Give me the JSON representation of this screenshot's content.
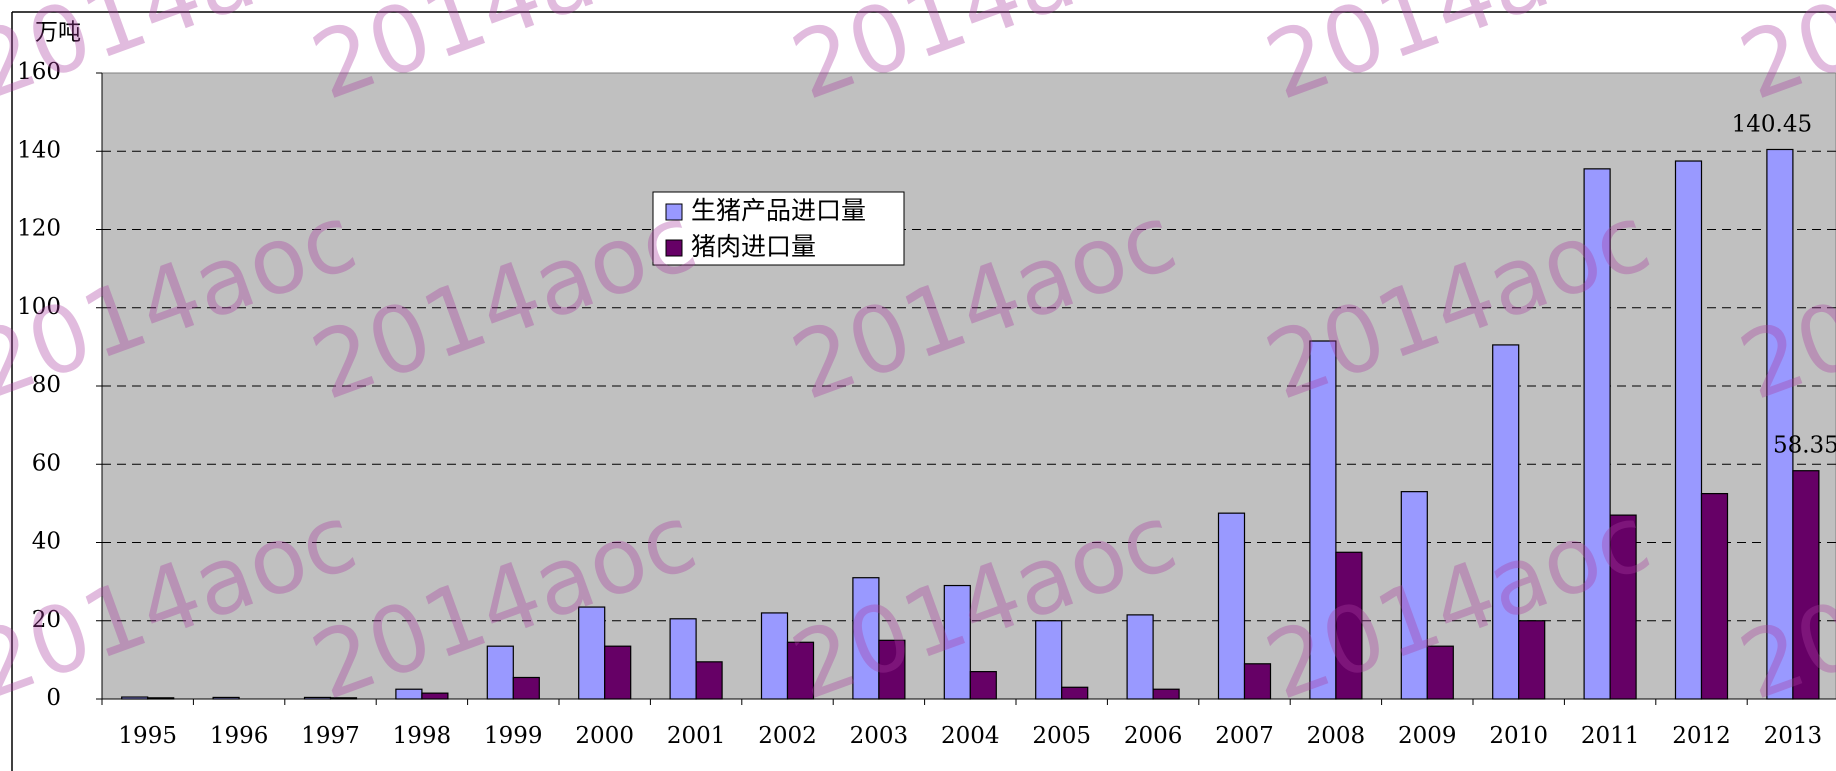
{
  "chart_data": {
    "type": "bar",
    "y_axis_label": "万吨",
    "categories": [
      "1995",
      "1996",
      "1997",
      "1998",
      "1999",
      "2000",
      "2001",
      "2002",
      "2003",
      "2004",
      "2005",
      "2006",
      "2007",
      "2008",
      "2009",
      "2010",
      "2011",
      "2012",
      "2013"
    ],
    "series": [
      {
        "name": "生猪产品进口量",
        "color": "#9999ff",
        "values": [
          0.5,
          0.4,
          0.4,
          2.5,
          13.5,
          23.5,
          20.5,
          22,
          31,
          29,
          20,
          21.5,
          47.5,
          91.5,
          53,
          90.5,
          135.5,
          137.5,
          140.45
        ]
      },
      {
        "name": "猪肉进口量",
        "color": "#660066",
        "values": [
          0.3,
          0,
          0.3,
          1.5,
          5.5,
          13.5,
          9.5,
          14.5,
          15,
          7,
          3,
          2.5,
          9,
          37.5,
          13.5,
          20,
          47,
          52.5,
          58.35
        ]
      }
    ],
    "ylim": [
      0,
      160
    ],
    "yticks": [
      0,
      20,
      40,
      60,
      80,
      100,
      120,
      140,
      160
    ],
    "grid": true,
    "watermark": "2014aoc"
  }
}
